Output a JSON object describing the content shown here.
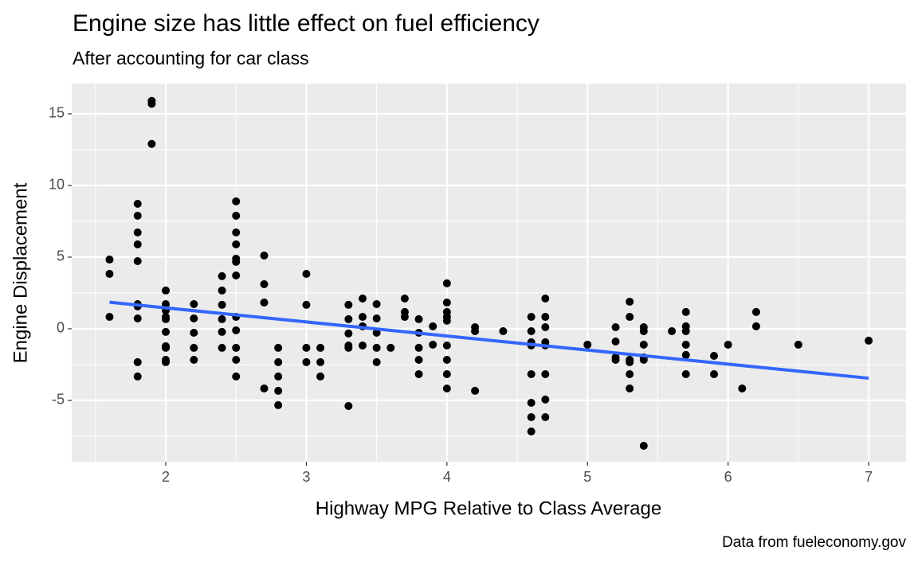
{
  "chart_data": {
    "type": "scatter",
    "title": "Engine size has little effect on fuel efficiency",
    "subtitle": "After accounting for car class",
    "x_label": "Highway MPG Relative to Class Average",
    "y_label": "Engine Displacement",
    "caption": "Data from fueleconomy.gov",
    "color": "#000000",
    "x": [
      1.6,
      1.6,
      1.6,
      1.8,
      1.8,
      1.8,
      1.8,
      1.8,
      1.8,
      1.8,
      1.8,
      1.8,
      1.8,
      1.9,
      1.9,
      1.9,
      2.0,
      2.0,
      2.0,
      2.0,
      2.0,
      2.0,
      2.0,
      2.0,
      2.0,
      2.0,
      2.2,
      2.2,
      2.2,
      2.2,
      2.2,
      2.4,
      2.4,
      2.4,
      2.4,
      2.4,
      2.4,
      2.5,
      2.5,
      2.5,
      2.5,
      2.5,
      2.5,
      2.5,
      2.5,
      2.5,
      2.5,
      2.5,
      2.5,
      2.7,
      2.7,
      2.7,
      2.7,
      2.8,
      2.8,
      2.8,
      2.8,
      2.8,
      3.0,
      3.0,
      3.0,
      3.0,
      3.1,
      3.1,
      3.1,
      3.3,
      3.3,
      3.3,
      3.3,
      3.3,
      3.3,
      3.4,
      3.4,
      3.4,
      3.4,
      3.5,
      3.5,
      3.5,
      3.5,
      3.5,
      3.6,
      3.7,
      3.7,
      3.7,
      3.8,
      3.8,
      3.8,
      3.8,
      3.8,
      3.9,
      3.9,
      4.0,
      4.0,
      4.0,
      4.0,
      4.0,
      4.0,
      4.0,
      4.0,
      4.0,
      4.2,
      4.2,
      4.2,
      4.4,
      4.6,
      4.6,
      4.6,
      4.6,
      4.6,
      4.6,
      4.6,
      4.6,
      4.7,
      4.7,
      4.7,
      4.7,
      4.7,
      4.7,
      4.7,
      4.7,
      5.0,
      5.2,
      5.2,
      5.2,
      5.2,
      5.3,
      5.3,
      5.3,
      5.3,
      5.3,
      5.3,
      5.4,
      5.4,
      5.4,
      5.4,
      5.4,
      5.4,
      5.6,
      5.7,
      5.7,
      5.7,
      5.7,
      5.7,
      5.7,
      5.9,
      5.9,
      6.0,
      6.1,
      6.2,
      6.2,
      6.5,
      7.0
    ],
    "values": [
      4.83,
      3.83,
      0.83,
      8.72,
      7.89,
      6.72,
      5.89,
      4.72,
      1.72,
      1.56,
      0.72,
      -2.33,
      -3.33,
      15.9,
      15.7,
      12.9,
      2.67,
      1.72,
      1.28,
      0.83,
      0.67,
      -0.22,
      -1.22,
      -1.33,
      -2.17,
      -2.33,
      1.72,
      0.72,
      -0.28,
      -1.33,
      -2.17,
      3.67,
      2.67,
      1.67,
      0.67,
      -0.22,
      -1.33,
      8.89,
      7.89,
      6.72,
      5.89,
      4.89,
      4.67,
      3.72,
      0.83,
      -0.11,
      -1.33,
      -2.17,
      -3.33,
      5.11,
      3.11,
      1.83,
      -4.17,
      -1.33,
      -2.33,
      -3.33,
      -4.33,
      -5.33,
      3.83,
      1.67,
      -1.33,
      -2.33,
      -1.33,
      -2.33,
      -3.33,
      1.67,
      0.67,
      -0.33,
      -1.17,
      -1.33,
      -5.39,
      2.11,
      0.83,
      0.17,
      -1.17,
      1.72,
      0.72,
      -0.28,
      -1.33,
      -2.33,
      -1.33,
      2.11,
      1.17,
      0.83,
      0.67,
      -0.28,
      -1.33,
      -2.17,
      -3.17,
      0.17,
      -1.11,
      3.17,
      1.83,
      1.17,
      0.83,
      0.56,
      -1.17,
      -2.17,
      -3.17,
      -4.17,
      0.11,
      -0.17,
      -4.33,
      -0.17,
      0.83,
      -0.17,
      -0.94,
      -1.17,
      -3.17,
      -5.17,
      -6.17,
      -7.17,
      2.11,
      0.83,
      0.11,
      -0.94,
      -1.17,
      -3.17,
      -4.94,
      -6.17,
      -1.11,
      0.11,
      -0.89,
      -2.0,
      -2.17,
      1.89,
      0.83,
      -2.17,
      -2.33,
      -3.17,
      -4.17,
      0.11,
      -0.17,
      -1.11,
      -2.0,
      -2.17,
      -8.17,
      -0.17,
      1.17,
      0.17,
      -0.17,
      -1.11,
      -1.83,
      -3.17,
      -1.89,
      -3.17,
      -1.11,
      -4.17,
      1.17,
      0.17,
      -1.11,
      -0.83
    ],
    "trend": {
      "color": "#3366ff",
      "x": [
        1.6,
        7.0
      ],
      "values": [
        1.85,
        -3.45
      ]
    },
    "xlim": [
      1.331,
      7.266
    ],
    "ylim": [
      -9.28,
      17.11
    ],
    "xticks": [
      2,
      3,
      4,
      5,
      6,
      7
    ],
    "yticks": [
      -5,
      0,
      5,
      10,
      15
    ],
    "minor_xticks": [
      1.5,
      2.5,
      3.5,
      4.5,
      5.5,
      6.5
    ],
    "minor_yticks": [
      -7.5,
      -2.5,
      2.5,
      7.5,
      12.5
    ],
    "grid": true
  }
}
